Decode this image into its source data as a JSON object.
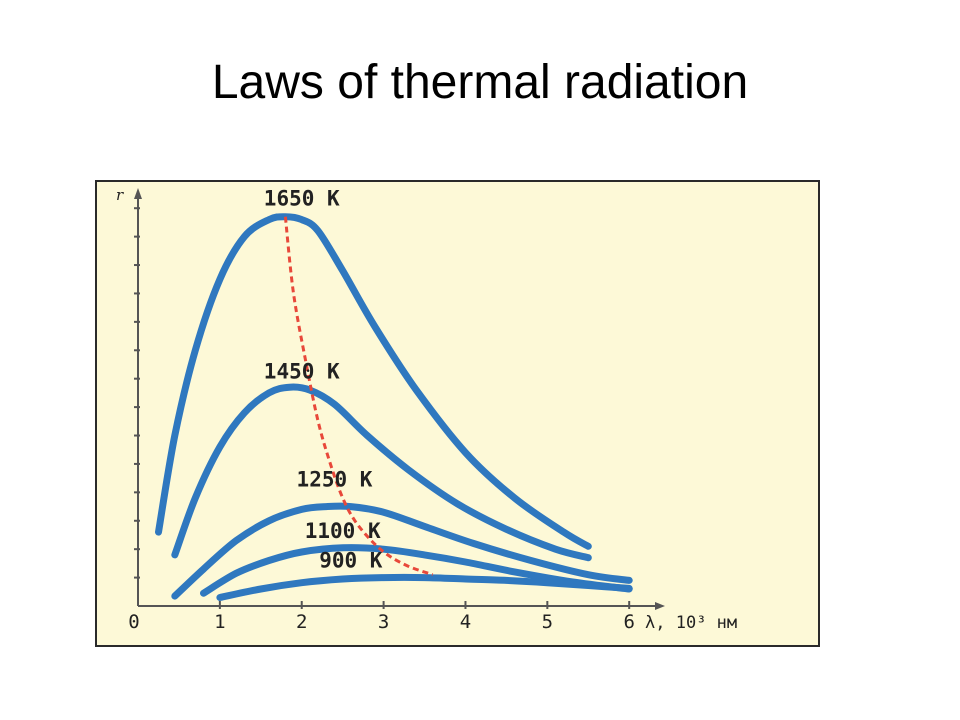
{
  "slide": {
    "title": "Laws of thermal radiation"
  },
  "colors": {
    "background": "#ffffff",
    "plot_background": "#fdf9d7",
    "curve": "#2f78bf",
    "wien_line": "#e8483a",
    "axis": "#555555",
    "text": "#222222"
  },
  "chart_data": {
    "type": "line",
    "title": "",
    "xlabel": "λ, 10³ нм",
    "ylabel": "r",
    "xlim": [
      0,
      7.5
    ],
    "ylim": [
      0,
      14.5
    ],
    "x_ticks": [
      "0",
      "1",
      "2",
      "3",
      "4",
      "5",
      "6"
    ],
    "y_tick_count": 14,
    "grid": false,
    "legend": "none",
    "series": [
      {
        "name": "1650 K",
        "x": [
          0.25,
          0.45,
          0.7,
          1.0,
          1.3,
          1.6,
          1.8,
          2.0,
          2.2,
          2.5,
          2.9,
          3.4,
          4.0,
          4.6,
          5.2,
          5.5
        ],
        "y": [
          2.6,
          6.0,
          9.0,
          11.5,
          13.0,
          13.6,
          13.7,
          13.6,
          13.2,
          11.8,
          9.8,
          7.6,
          5.4,
          3.8,
          2.6,
          2.1
        ]
      },
      {
        "name": "1450 K",
        "x": [
          0.45,
          0.7,
          1.0,
          1.3,
          1.6,
          1.85,
          2.1,
          2.4,
          2.8,
          3.3,
          3.9,
          4.5,
          5.1,
          5.5
        ],
        "y": [
          1.8,
          3.8,
          5.6,
          6.8,
          7.5,
          7.7,
          7.6,
          7.1,
          6.0,
          4.8,
          3.6,
          2.7,
          2.0,
          1.7
        ]
      },
      {
        "name": "1250 K",
        "x": [
          0.45,
          0.8,
          1.2,
          1.6,
          2.0,
          2.3,
          2.6,
          3.0,
          3.5,
          4.1,
          4.8,
          5.5,
          6.0
        ],
        "y": [
          0.35,
          1.3,
          2.3,
          3.0,
          3.4,
          3.5,
          3.5,
          3.3,
          2.8,
          2.2,
          1.6,
          1.1,
          0.9
        ]
      },
      {
        "name": "1100 K",
        "x": [
          0.8,
          1.2,
          1.6,
          2.0,
          2.5,
          3.0,
          3.5,
          4.0,
          4.6,
          5.3,
          6.0
        ],
        "y": [
          0.45,
          1.15,
          1.6,
          1.9,
          2.05,
          2.0,
          1.8,
          1.55,
          1.2,
          0.85,
          0.6
        ]
      },
      {
        "name": "900 K",
        "x": [
          1.0,
          1.5,
          2.0,
          2.5,
          3.0,
          3.5,
          4.0,
          4.5,
          5.0,
          5.5,
          6.0
        ],
        "y": [
          0.3,
          0.6,
          0.82,
          0.95,
          1.0,
          1.0,
          0.95,
          0.9,
          0.82,
          0.72,
          0.62
        ]
      }
    ],
    "wien_line": {
      "x": [
        1.8,
        1.9,
        2.05,
        2.2,
        2.35,
        2.5,
        2.65,
        2.85,
        3.05,
        3.3,
        3.6
      ],
      "y": [
        13.7,
        11.0,
        8.6,
        6.5,
        5.0,
        3.8,
        3.0,
        2.3,
        1.8,
        1.4,
        1.1
      ]
    },
    "annotations": [
      {
        "text": "1650 K",
        "x": 2.0,
        "y": 14.1
      },
      {
        "text": "1450 K",
        "x": 2.0,
        "y": 8.0
      },
      {
        "text": "1250 K",
        "x": 2.4,
        "y": 4.2
      },
      {
        "text": "1100 K",
        "x": 2.5,
        "y": 2.4
      },
      {
        "text": "900 K",
        "x": 2.6,
        "y": 1.35
      }
    ]
  }
}
